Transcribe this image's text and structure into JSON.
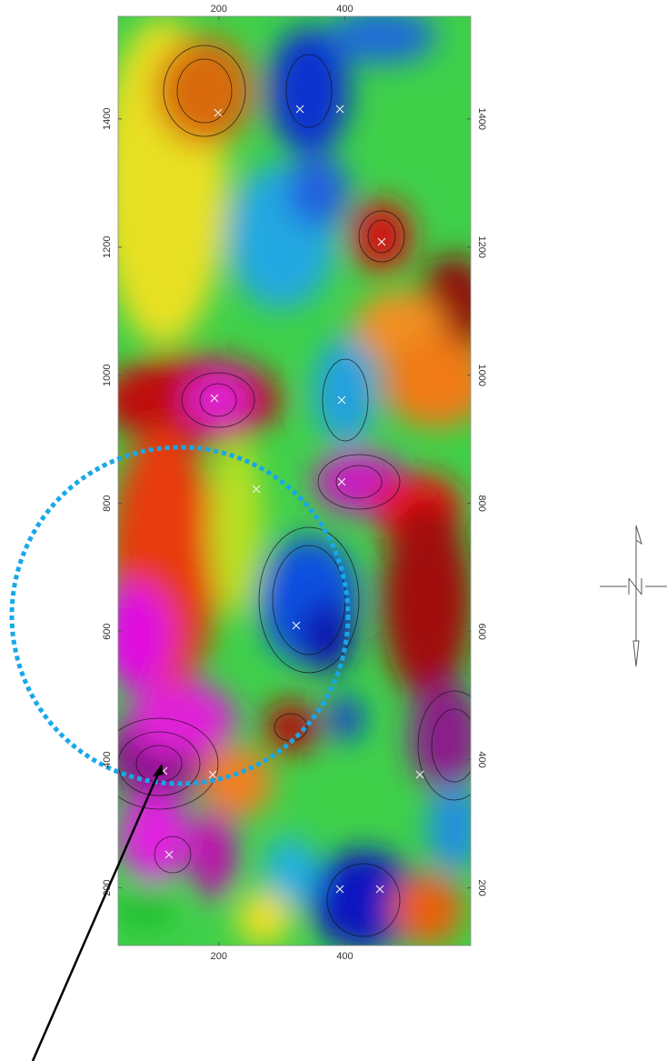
{
  "map": {
    "xlim": [
      40,
      600
    ],
    "ylim": [
      110,
      1560
    ],
    "xticks": [
      200,
      400
    ],
    "yticks": [
      200,
      400,
      600,
      800,
      1000,
      1200,
      1400
    ]
  }
}
